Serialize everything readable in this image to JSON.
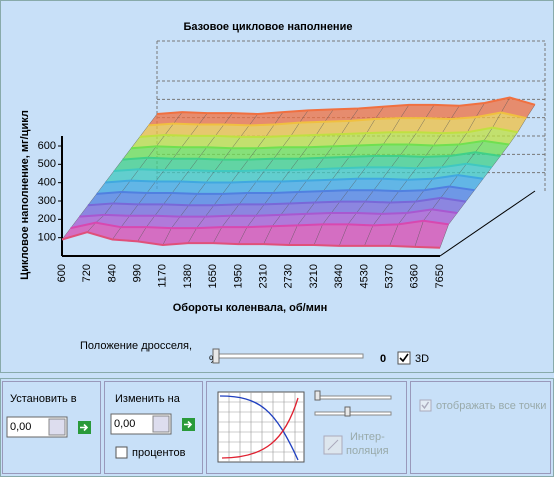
{
  "chart_data": {
    "type": "surface3d",
    "title": "Базовое цикловое наполнение",
    "y_label": "Цикловое наполнение, мг/цикл",
    "x_label": "Обороты коленвала, об/мин",
    "categories": [
      "600",
      "720",
      "840",
      "990",
      "1170",
      "1380",
      "1650",
      "1950",
      "2310",
      "2730",
      "3210",
      "3840",
      "4530",
      "5370",
      "6360",
      "7650"
    ],
    "ylim": [
      0,
      600
    ],
    "yticks": [
      100,
      200,
      300,
      400,
      500,
      600
    ],
    "series": [
      {
        "color": "#e0507a",
        "values": [
          90,
          130,
          90,
          80,
          60,
          70,
          70,
          65,
          65,
          60,
          60,
          55,
          55,
          55,
          50,
          45
        ]
      },
      {
        "color": "#d848b0",
        "values": [
          120,
          150,
          125,
          125,
          120,
          120,
          125,
          125,
          130,
          135,
          140,
          140,
          135,
          140,
          160,
          140
        ]
      },
      {
        "color": "#a858d0",
        "values": [
          150,
          160,
          155,
          155,
          150,
          150,
          155,
          155,
          160,
          165,
          170,
          170,
          165,
          170,
          190,
          170
        ]
      },
      {
        "color": "#7868d8",
        "values": [
          180,
          190,
          185,
          185,
          180,
          180,
          185,
          185,
          190,
          195,
          200,
          200,
          195,
          200,
          220,
          200
        ]
      },
      {
        "color": "#5080e0",
        "values": [
          210,
          220,
          215,
          215,
          210,
          210,
          215,
          215,
          220,
          225,
          230,
          230,
          225,
          230,
          250,
          230
        ]
      },
      {
        "color": "#40a8e0",
        "values": [
          240,
          250,
          245,
          245,
          240,
          240,
          245,
          245,
          250,
          255,
          260,
          260,
          255,
          260,
          280,
          260
        ]
      },
      {
        "color": "#40c8c0",
        "values": [
          270,
          280,
          275,
          275,
          270,
          270,
          275,
          275,
          280,
          285,
          290,
          290,
          285,
          290,
          310,
          290
        ]
      },
      {
        "color": "#40d088",
        "values": [
          300,
          310,
          305,
          305,
          300,
          300,
          305,
          305,
          310,
          315,
          320,
          320,
          315,
          320,
          340,
          320
        ]
      },
      {
        "color": "#70e050",
        "values": [
          330,
          340,
          335,
          335,
          330,
          330,
          335,
          335,
          340,
          345,
          350,
          350,
          345,
          350,
          370,
          350
        ]
      },
      {
        "color": "#c0e040",
        "values": [
          360,
          370,
          365,
          365,
          360,
          360,
          365,
          370,
          375,
          380,
          385,
          385,
          380,
          385,
          410,
          385
        ]
      },
      {
        "color": "#f0c040",
        "values": [
          390,
          400,
          395,
          395,
          390,
          395,
          405,
          410,
          415,
          425,
          430,
          430,
          425,
          435,
          460,
          430
        ]
      },
      {
        "color": "#f07040",
        "values": [
          420,
          430,
          425,
          425,
          420,
          430,
          440,
          445,
          450,
          460,
          470,
          470,
          465,
          480,
          510,
          470
        ]
      }
    ]
  },
  "controls": {
    "throttle_label": "Положение дросселя,",
    "throttle_unit": "%",
    "throttle_value": "0",
    "checkbox_3d": "3D",
    "set_label": "Установить в",
    "set_value": "0,00",
    "change_label": "Изменить на",
    "change_value": "0,00",
    "percent_label": "процентов",
    "interp_label_1": "Интер-",
    "interp_label_2": "поляция",
    "show_all_label": "отображать все точки"
  }
}
